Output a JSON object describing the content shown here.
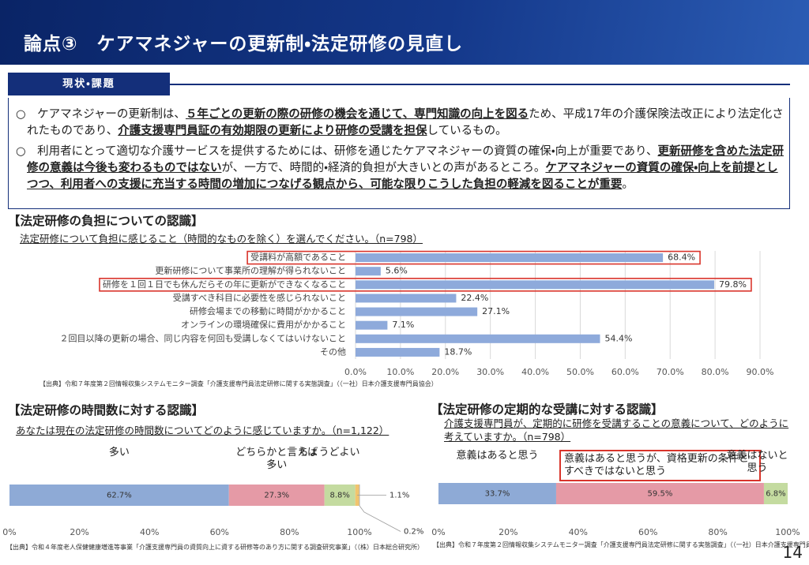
{
  "header": {
    "title": "論点③　ケアマネジャーの更新制・法定研修の見直し",
    "page_number": "14"
  },
  "section": {
    "label": "現状・課題",
    "paragraphs": [
      [
        {
          "text": "○　ケアマネジャーの更新制は、"
        },
        {
          "text": "５年ごとの更新の際の研修の機会を通じて、専門知識の向上を図る",
          "emphasis": true
        },
        {
          "text": "ため、平成17年の介護保険法改正により法定化されたものであり、"
        },
        {
          "text": "介護支援専門員証の有効期限の更新により研修の受講を担保",
          "emphasis": true
        },
        {
          "text": "しているもの。"
        }
      ],
      [
        {
          "text": "○　利用者にとって適切な介護サービスを提供するためには、研修を通じたケアマネジャーの資質の確保・向上が重要であり、"
        },
        {
          "text": "更新研修を含めた法定研修の意義は今後も変わるものではない",
          "emphasis": true
        },
        {
          "text": "が、一方で、時間的・経済的負担が大きいとの声があるところ。"
        },
        {
          "text": "ケアマネジャーの資質の確保・向上を前提としつつ、利用者への支援に充当する時間の増加につなげる観点から、可能な限りこうした負担の軽減を図ることが重要",
          "emphasis": true
        },
        {
          "text": "。"
        }
      ]
    ]
  },
  "chart_data": [
    {
      "type": "hbar",
      "title": "【法定研修の負担についての認識】",
      "subtitle": "法定研修について負担に感じること（時間的なものを除く）を選んでください。（n=798）",
      "categories": [
        "受講料が高額であること",
        "更新研修について事業所の理解が得られないこと",
        "研修を１回１日でも休んだらその年に更新ができなくなること",
        "受講すべき科目に必要性を感じられないこと",
        "研修会場までの移動に時間がかかること",
        "オンラインの環境確保に費用がかかること",
        "２回目以降の更新の場合、同じ内容を何回も受講しなくてはいけないこと",
        "その他"
      ],
      "values": [
        68.4,
        5.6,
        79.8,
        22.4,
        27.1,
        7.1,
        54.4,
        18.7
      ],
      "value_labels": [
        "68.4%",
        "5.6%",
        "79.8%",
        "22.4%",
        "27.1%",
        "7.1%",
        "54.4%",
        "18.7%"
      ],
      "color": "#8eaadb",
      "highlight": [
        0,
        2
      ],
      "highlight_color": "#d9342b",
      "xlim": [
        0,
        90
      ],
      "xticks": [
        {
          "value": 0,
          "label": "0.0%"
        },
        {
          "value": 10,
          "label": "10.0%"
        },
        {
          "value": 20,
          "label": "20.0%"
        },
        {
          "value": 30,
          "label": "30.0%"
        },
        {
          "value": 40,
          "label": "40.0%"
        },
        {
          "value": 50,
          "label": "50.0%"
        },
        {
          "value": 60,
          "label": "60.0%"
        },
        {
          "value": 70,
          "label": "70.0%"
        },
        {
          "value": 80,
          "label": "80.0%"
        },
        {
          "value": 90,
          "label": "90.0%"
        }
      ],
      "grid": true,
      "source": "【出典】令和７年度第２回情報収集システムモニター調査「介護支援専門員法定研修に関する実態調査」（（一社）日本介護支援専門員協会）"
    },
    {
      "type": "stacked_hbar",
      "title": "【法定研修の時間数に対する認識】",
      "subtitle": "あなたは現在の法定研修の時間数についてどのように感じていますか。（n=1,122）",
      "series": [
        {
          "name": "多い",
          "color": "#8eaad6",
          "values": [
            62.7
          ],
          "value_labels": [
            "62.7%"
          ]
        },
        {
          "name": "どちらかと言えば多い",
          "color": "#e59aa6",
          "values": [
            27.3
          ],
          "value_labels": [
            "27.3%"
          ]
        },
        {
          "name": "ちょうどよい",
          "color": "#c4dba0",
          "values": [
            8.8
          ],
          "value_labels": [
            "8.8%"
          ]
        },
        {
          "name": null,
          "color": "#f2c46d",
          "values": [
            1.1
          ],
          "value_labels": [
            "1.1%"
          ]
        },
        {
          "name": null,
          "color": "#a6a6a6",
          "values": [
            0.2
          ],
          "value_labels": [
            "0.2%"
          ]
        }
      ],
      "highlight": [],
      "highlight_color": "#d9342b",
      "xlim": [
        0,
        100
      ],
      "xticks": [
        {
          "value": 0,
          "label": "0%"
        },
        {
          "value": 20,
          "label": "20%"
        },
        {
          "value": 40,
          "label": "40%"
        },
        {
          "value": 60,
          "label": "60%"
        },
        {
          "value": 80,
          "label": "80%"
        },
        {
          "value": 100,
          "label": "100%"
        }
      ],
      "grid": false,
      "source": "【出典】令和４年度老人保健健康増進等事業「介護支援専門員の資質向上に資する研修等のあり方に関する調査研究事業」（（株）日本総合研究所）"
    },
    {
      "type": "stacked_hbar",
      "title": "【法定研修の定期的な受講に対する認識】",
      "subtitle": "介護支援専門員が、定期的に研修を受講することの意義について、どのように考えていますか。（n=798）",
      "series": [
        {
          "name": "意義はあると思う",
          "color": "#8eaad6",
          "values": [
            33.7
          ],
          "value_labels": [
            "33.7%"
          ]
        },
        {
          "name": "意義はあると思うが、資格更新の条件とすべきではないと思う",
          "color": "#e59aa6",
          "values": [
            59.5
          ],
          "value_labels": [
            "59.5%"
          ]
        },
        {
          "name": "意義はないと思う",
          "color": "#c4dba0",
          "values": [
            6.8
          ],
          "value_labels": [
            "6.8%"
          ]
        }
      ],
      "highlight": [
        1
      ],
      "highlight_color": "#d9342b",
      "xlim": [
        0,
        100
      ],
      "xticks": [
        {
          "value": 0,
          "label": "0%"
        },
        {
          "value": 20,
          "label": "20%"
        },
        {
          "value": 40,
          "label": "40%"
        },
        {
          "value": 60,
          "label": "60%"
        },
        {
          "value": 80,
          "label": "80%"
        },
        {
          "value": 100,
          "label": "100%"
        }
      ],
      "grid": false,
      "source": "【出典】令和７年度第２回情報収集システムモニター調査「介護支援専門員法定研修に関する実態調査」（（一社）日本介護支援専門員協会）"
    }
  ]
}
